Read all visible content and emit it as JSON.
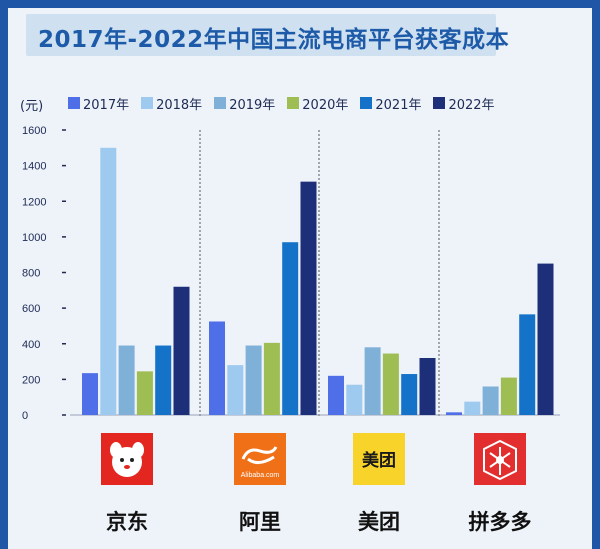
{
  "title": "2017年-2022年中国主流电商平台获客成本",
  "unit": "(元)",
  "colors": {
    "frame": "#1f57a6",
    "panel": "#eef2f9",
    "title_bg": "#cfe0f1",
    "title_text": "#1d5aa8"
  },
  "chart_data": {
    "type": "bar",
    "title": "2017年-2022年中国主流电商平台获客成本",
    "ylabel": "(元)",
    "ylim": [
      0,
      1600
    ],
    "yticks": [
      "1600",
      "1400",
      "1200",
      "1000",
      "800",
      "600",
      "400",
      "200",
      "0"
    ],
    "grid": false,
    "legend_position": "top",
    "categories": [
      "京东",
      "阿里",
      "美团",
      "拼多多"
    ],
    "series": [
      {
        "name": "2017年",
        "color": "#4f6fe8",
        "values": [
          235,
          525,
          220,
          15
        ]
      },
      {
        "name": "2018年",
        "color": "#9fcaf0",
        "values": [
          1500,
          280,
          170,
          75
        ]
      },
      {
        "name": "2019年",
        "color": "#7fb0d8",
        "values": [
          390,
          390,
          380,
          160
        ]
      },
      {
        "name": "2020年",
        "color": "#9ebd52",
        "values": [
          245,
          405,
          345,
          210
        ]
      },
      {
        "name": "2021年",
        "color": "#1473c8",
        "values": [
          390,
          970,
          230,
          565
        ]
      },
      {
        "name": "2022年",
        "color": "#1c2f78",
        "values": [
          720,
          1310,
          320,
          850
        ]
      }
    ]
  },
  "platforms": [
    {
      "name": "京东",
      "logo_icon": "jd-dog-logo",
      "logo_color": "#e3261f"
    },
    {
      "name": "阿里",
      "logo_icon": "alibaba-logo",
      "logo_color": "#f07018",
      "logo_text": "Alibaba.com"
    },
    {
      "name": "美团",
      "logo_icon": "meituan-logo",
      "logo_color": "#f8d32a",
      "logo_text": "美团"
    },
    {
      "name": "拼多多",
      "logo_icon": "pinduoduo-logo",
      "logo_color": "#e22e2e"
    }
  ]
}
